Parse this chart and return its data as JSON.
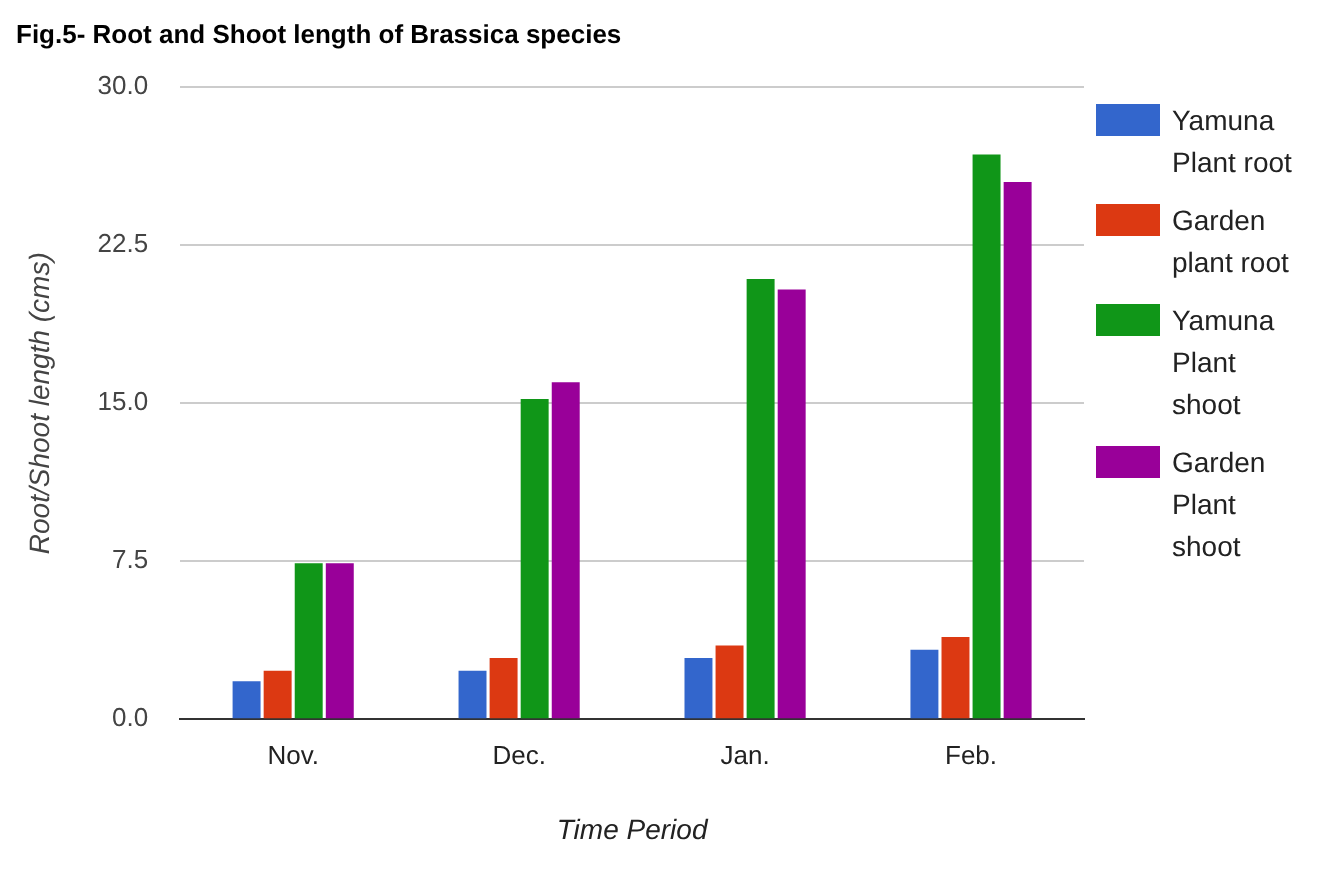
{
  "chart_data": {
    "type": "bar",
    "title": "Fig.5- Root and Shoot length of Brassica species",
    "xlabel": "Time Period",
    "ylabel": "Root/Shoot length (cms)",
    "categories": [
      "Nov.",
      "Dec.",
      "Jan.",
      "Feb."
    ],
    "series": [
      {
        "name": "Yamuna Plant root",
        "color": "#3366cc",
        "values": [
          1.8,
          2.3,
          2.9,
          3.3
        ]
      },
      {
        "name": "Garden plant root",
        "color": "#dc3912",
        "values": [
          2.3,
          2.9,
          3.5,
          3.9
        ]
      },
      {
        "name": "Yamuna Plant shoot",
        "color": "#109618",
        "values": [
          7.4,
          15.2,
          20.9,
          26.8
        ]
      },
      {
        "name": "Garden Plant shoot",
        "color": "#990099",
        "values": [
          7.4,
          16.0,
          20.4,
          25.5
        ]
      }
    ],
    "ylim": [
      0,
      30
    ],
    "yticks": [
      {
        "value": 0,
        "label": "0.0"
      },
      {
        "value": 7.5,
        "label": "7.5"
      },
      {
        "value": 15,
        "label": "15.0"
      },
      {
        "value": 22.5,
        "label": "22.5"
      },
      {
        "value": 30,
        "label": "30.0"
      }
    ],
    "grid": "y",
    "legend": "right"
  }
}
